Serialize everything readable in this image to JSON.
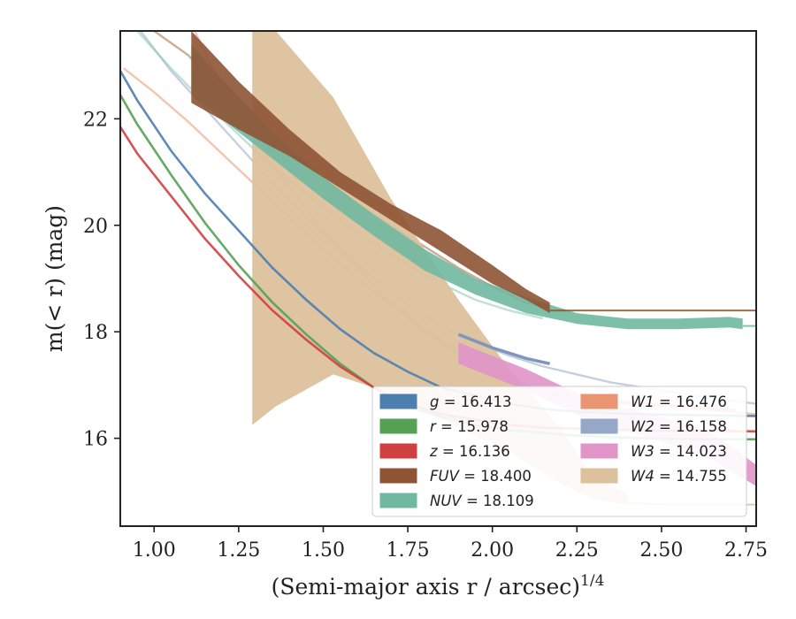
{
  "chart_data": {
    "type": "line",
    "title": "",
    "xlabel": "(Semi-major axis r / arcsec)",
    "xlabel_sup": "1/4",
    "ylabel": "m(< r) (mag)",
    "xlim": [
      0.9,
      2.78
    ],
    "ylim": [
      23.65,
      14.35
    ],
    "y_inverted": true,
    "x_ticks": [
      "1.00",
      "1.25",
      "1.50",
      "1.75",
      "2.00",
      "2.25",
      "2.50",
      "2.75"
    ],
    "y_ticks": [
      "16",
      "18",
      "20",
      "22"
    ],
    "grid": false,
    "legend_position": "lower-right",
    "legend": [
      {
        "label": "g",
        "value": "16.413",
        "color": "#4c7eb0"
      },
      {
        "label": "r",
        "value": "15.978",
        "color": "#55a155"
      },
      {
        "label": "z",
        "value": "16.136",
        "color": "#d04040"
      },
      {
        "label": "FUV",
        "value": "18.400",
        "color": "#8e5434"
      },
      {
        "label": "NUV",
        "value": "18.109",
        "color": "#70b8a0"
      },
      {
        "label": "W1",
        "value": "16.476",
        "color": "#ea9472"
      },
      {
        "label": "W2",
        "value": "16.158",
        "color": "#96a8c8"
      },
      {
        "label": "W3",
        "value": "14.023",
        "color": "#e094c8"
      },
      {
        "label": "W4",
        "value": "14.755",
        "color": "#dcc19c"
      }
    ],
    "series": [
      {
        "name": "W4",
        "color": "#dcc19c",
        "band_x": [
          1.29,
          1.36,
          1.53,
          1.7,
          1.9,
          2.05,
          2.2,
          2.3,
          2.4
        ],
        "band_upper": [
          16.25,
          16.6,
          17.2,
          16.85,
          16.2,
          15.75,
          15.15,
          14.85,
          14.75
        ],
        "band_lower": [
          23.65,
          23.65,
          22.4,
          20.5,
          18.6,
          17.3,
          16.2,
          15.25,
          14.95
        ],
        "ext_x": [
          2.4,
          2.5,
          2.6,
          2.7,
          2.78
        ],
        "ext_y": [
          14.78,
          14.76,
          14.755,
          14.755,
          14.755
        ]
      },
      {
        "name": "W3",
        "color": "#e094c8",
        "band_x": [
          1.9,
          2.1,
          2.3,
          2.5,
          2.65,
          2.78
        ],
        "band_upper": [
          17.4,
          16.9,
          16.3,
          15.95,
          15.6,
          15.1
        ],
        "band_lower": [
          17.8,
          17.3,
          16.7,
          16.4,
          16.1,
          15.5
        ]
      },
      {
        "name": "FUV",
        "color": "#8e5434",
        "band_x": [
          1.11,
          1.25,
          1.4,
          1.55,
          1.7,
          1.85,
          2.0,
          2.1,
          2.17
        ],
        "band_upper": [
          22.3,
          21.8,
          21.3,
          20.7,
          20.1,
          19.5,
          18.9,
          18.6,
          18.35
        ],
        "band_lower": [
          23.65,
          22.7,
          21.8,
          21.0,
          20.4,
          19.9,
          19.25,
          18.8,
          18.55
        ],
        "ext_x": [
          2.17,
          2.3,
          2.5,
          2.78
        ],
        "ext_y": [
          18.4,
          18.4,
          18.4,
          18.4
        ]
      },
      {
        "name": "NUV",
        "color": "#70b8a0",
        "band_x": [
          1.11,
          1.2,
          1.35,
          1.5,
          1.65,
          1.8,
          1.95,
          2.1,
          2.25,
          2.4,
          2.55,
          2.7,
          2.74
        ],
        "band_upper": [
          22.45,
          22.0,
          21.25,
          20.5,
          19.8,
          19.15,
          18.7,
          18.35,
          18.15,
          18.05,
          18.05,
          18.08,
          18.05
        ],
        "band_lower": [
          23.4,
          22.75,
          21.75,
          20.9,
          20.2,
          19.55,
          19.0,
          18.65,
          18.35,
          18.25,
          18.25,
          18.28,
          18.25
        ],
        "ext_x": [
          2.74,
          2.78
        ],
        "ext_y": [
          18.11,
          18.11
        ]
      },
      {
        "name": "W1",
        "color": "#ea9472",
        "x": [
          0.91,
          1.0,
          1.1,
          1.2,
          1.3,
          1.4,
          1.5,
          1.6,
          1.7,
          1.8,
          1.9,
          2.0,
          2.1,
          2.2,
          2.3,
          2.4,
          2.5,
          2.6,
          2.7,
          2.78
        ],
        "y": [
          22.95,
          22.5,
          21.95,
          21.35,
          20.75,
          20.15,
          19.55,
          19.0,
          18.5,
          18.05,
          17.65,
          17.3,
          17.0,
          16.8,
          16.7,
          16.65,
          16.6,
          16.55,
          16.5,
          16.45
        ]
      },
      {
        "name": "W2",
        "color": "#96a8c8",
        "x": [
          0.96,
          1.05,
          1.15,
          1.25,
          1.35,
          1.45,
          1.55,
          1.65,
          1.75,
          1.85,
          1.95,
          2.05,
          2.15,
          2.25,
          2.35,
          2.45,
          2.55,
          2.65,
          2.78
        ],
        "y": [
          23.65,
          22.9,
          22.2,
          21.5,
          20.8,
          20.15,
          19.55,
          19.0,
          18.5,
          18.1,
          17.8,
          17.55,
          17.35,
          17.2,
          17.05,
          16.95,
          16.85,
          16.75,
          16.65
        ]
      },
      {
        "name": "g",
        "color": "#4c7eb0",
        "x": [
          0.9,
          0.95,
          1.05,
          1.15,
          1.25,
          1.35,
          1.45,
          1.55,
          1.65,
          1.75,
          1.85,
          1.95,
          2.05,
          2.15,
          2.25,
          2.35,
          2.45,
          2.55,
          2.65,
          2.78
        ],
        "y": [
          22.9,
          22.35,
          21.4,
          20.6,
          19.9,
          19.2,
          18.6,
          18.05,
          17.6,
          17.25,
          16.95,
          16.8,
          16.65,
          16.55,
          16.5,
          16.47,
          16.45,
          16.44,
          16.43,
          16.42
        ]
      },
      {
        "name": "r",
        "color": "#55a155",
        "x": [
          0.9,
          0.95,
          1.05,
          1.15,
          1.25,
          1.35,
          1.45,
          1.55,
          1.65,
          1.75,
          1.85,
          1.95,
          2.05,
          2.15,
          2.25,
          2.35,
          2.45,
          2.55,
          2.65,
          2.78
        ],
        "y": [
          22.45,
          21.9,
          20.95,
          20.05,
          19.25,
          18.55,
          17.95,
          17.4,
          16.95,
          16.6,
          16.4,
          16.25,
          16.15,
          16.1,
          16.05,
          16.02,
          16.0,
          15.99,
          15.98,
          15.98
        ]
      },
      {
        "name": "z",
        "color": "#d04040",
        "x": [
          0.9,
          0.95,
          1.05,
          1.15,
          1.25,
          1.35,
          1.45,
          1.55,
          1.65,
          1.75,
          1.85,
          1.95,
          2.05,
          2.15,
          2.25,
          2.35,
          2.45,
          2.55,
          2.65,
          2.78
        ],
        "y": [
          21.85,
          21.35,
          20.55,
          19.75,
          19.05,
          18.4,
          17.85,
          17.35,
          16.95,
          16.65,
          16.45,
          16.35,
          16.25,
          16.2,
          16.18,
          16.16,
          16.15,
          16.14,
          16.14,
          16.13
        ]
      },
      {
        "name": "FUV-line",
        "color": "#a06a48",
        "x": [
          1.0,
          1.1,
          1.2,
          1.3,
          1.4,
          1.5,
          1.6,
          1.7,
          1.8,
          1.9,
          2.0,
          2.1,
          2.17
        ],
        "y": [
          23.65,
          23.2,
          22.5,
          21.9,
          21.35,
          20.85,
          20.4,
          20.0,
          19.6,
          19.2,
          18.85,
          18.55,
          18.45
        ]
      },
      {
        "name": "NUV-line",
        "color": "#8cc8b4",
        "x": [
          0.95,
          1.05,
          1.15,
          1.25,
          1.35,
          1.45,
          1.55,
          1.65,
          1.75,
          1.85,
          1.95,
          2.05,
          2.15
        ],
        "y": [
          23.65,
          22.95,
          22.3,
          21.7,
          21.1,
          20.6,
          20.1,
          19.65,
          19.25,
          18.9,
          18.6,
          18.4,
          18.25
        ]
      },
      {
        "name": "W3-line",
        "color": "#e094c8",
        "x": [
          1.12,
          1.2,
          1.3,
          1.4,
          1.5,
          1.6,
          1.7,
          1.8,
          1.9
        ],
        "y": [
          23.65,
          22.6,
          21.6,
          20.7,
          19.9,
          19.2,
          18.55,
          18.0,
          17.6
        ]
      }
    ]
  }
}
